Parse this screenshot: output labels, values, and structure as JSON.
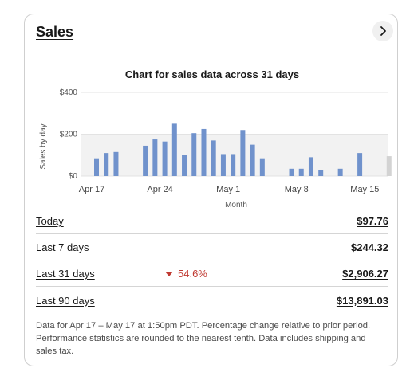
{
  "card": {
    "title": "Sales",
    "more_icon": "chevron-right-icon"
  },
  "chart_data": {
    "type": "bar",
    "title": "Chart for sales data across 31 days",
    "xlabel": "Month",
    "ylabel": "Sales by day",
    "ylim": [
      0,
      400
    ],
    "y_ticks": [
      "$400",
      "$200",
      "$0"
    ],
    "x_ticks": [
      "Apr 17",
      "Apr 24",
      "May 1",
      "May 8",
      "May 15"
    ],
    "bar_color": "#7092cc",
    "today_bar_color": "#d3d3d3",
    "values": [
      85,
      110,
      115,
      0,
      0,
      145,
      175,
      165,
      250,
      100,
      205,
      225,
      170,
      105,
      105,
      220,
      150,
      85,
      0,
      0,
      35,
      35,
      90,
      30,
      0,
      35,
      0,
      110,
      0,
      0,
      95
    ]
  },
  "rows": [
    {
      "label": "Today",
      "value": "$97.76",
      "change": ""
    },
    {
      "label": "Last 7 days",
      "value": "$244.32",
      "change": ""
    },
    {
      "label": "Last 31 days",
      "value": "$2,906.27",
      "change": "54.6%"
    },
    {
      "label": "Last 90 days",
      "value": "$13,891.03",
      "change": ""
    }
  ],
  "footnote": "Data for Apr 17 – May 17 at 1:50pm PDT. Percentage change relative to prior period. Performance statistics are rounded to the nearest tenth. Data includes shipping and sales tax."
}
